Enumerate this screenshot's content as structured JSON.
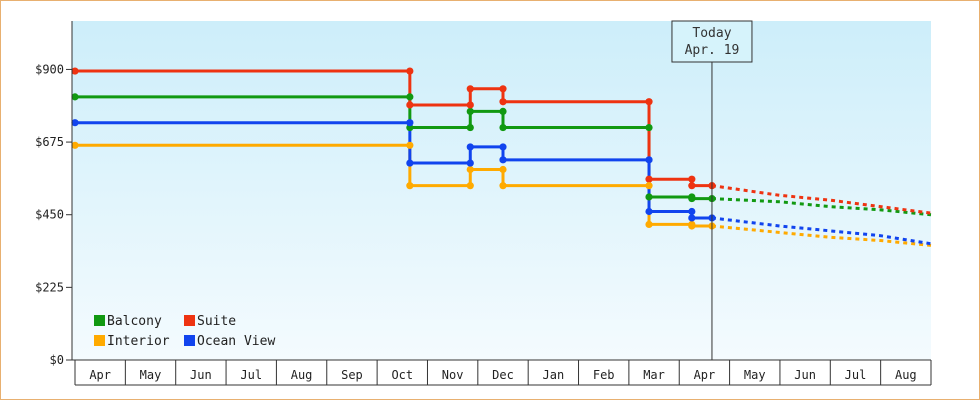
{
  "chart_data": {
    "type": "line",
    "y_ticks": [
      {
        "value": 0,
        "label": "$0"
      },
      {
        "value": 225,
        "label": "$225"
      },
      {
        "value": 450,
        "label": "$450"
      },
      {
        "value": 675,
        "label": "$675"
      },
      {
        "value": 900,
        "label": "$900"
      }
    ],
    "ylim": [
      0,
      1050
    ],
    "x_months": [
      "Apr",
      "May",
      "Jun",
      "Jul",
      "Aug",
      "Sep",
      "Oct",
      "Nov",
      "Dec",
      "Jan",
      "Feb",
      "Mar",
      "Apr",
      "May",
      "Jun",
      "Jul",
      "Aug"
    ],
    "x_range": [
      0,
      17
    ],
    "today": {
      "x": 12.65,
      "line1": "Today",
      "line2": "Apr. 19"
    },
    "grid": false,
    "legend_position": "bottom-left",
    "series": [
      {
        "name": "Balcony",
        "color": "#119911",
        "points": [
          [
            0,
            815
          ],
          [
            6.65,
            815
          ],
          [
            6.65,
            720
          ],
          [
            7.85,
            720
          ],
          [
            7.85,
            770
          ],
          [
            8.5,
            770
          ],
          [
            8.5,
            720
          ],
          [
            11.4,
            720
          ],
          [
            11.4,
            505
          ],
          [
            12.25,
            505
          ],
          [
            12.25,
            500
          ],
          [
            12.65,
            500
          ]
        ],
        "forecast": [
          [
            12.65,
            500
          ],
          [
            14,
            490
          ],
          [
            15,
            475
          ],
          [
            16,
            465
          ],
          [
            17,
            450
          ]
        ]
      },
      {
        "name": "Suite",
        "color": "#ee3311",
        "points": [
          [
            0,
            895
          ],
          [
            6.65,
            895
          ],
          [
            6.65,
            790
          ],
          [
            7.85,
            790
          ],
          [
            7.85,
            840
          ],
          [
            8.5,
            840
          ],
          [
            8.5,
            800
          ],
          [
            11.4,
            800
          ],
          [
            11.4,
            560
          ],
          [
            12.25,
            560
          ],
          [
            12.25,
            540
          ],
          [
            12.65,
            540
          ]
        ],
        "forecast": [
          [
            12.65,
            540
          ],
          [
            14,
            510
          ],
          [
            15,
            495
          ],
          [
            16,
            475
          ],
          [
            17,
            455
          ]
        ]
      },
      {
        "name": "Interior",
        "color": "#ffaa00",
        "points": [
          [
            0,
            665
          ],
          [
            6.65,
            665
          ],
          [
            6.65,
            540
          ],
          [
            7.85,
            540
          ],
          [
            7.85,
            590
          ],
          [
            8.5,
            590
          ],
          [
            8.5,
            540
          ],
          [
            11.4,
            540
          ],
          [
            11.4,
            420
          ],
          [
            12.25,
            420
          ],
          [
            12.25,
            415
          ],
          [
            12.65,
            415
          ]
        ],
        "forecast": [
          [
            12.65,
            415
          ],
          [
            14,
            395
          ],
          [
            15,
            380
          ],
          [
            16,
            370
          ],
          [
            17,
            355
          ]
        ]
      },
      {
        "name": "Ocean View",
        "color": "#1144ee",
        "points": [
          [
            0,
            735
          ],
          [
            6.65,
            735
          ],
          [
            6.65,
            610
          ],
          [
            7.85,
            610
          ],
          [
            7.85,
            660
          ],
          [
            8.5,
            660
          ],
          [
            8.5,
            620
          ],
          [
            11.4,
            620
          ],
          [
            11.4,
            460
          ],
          [
            12.25,
            460
          ],
          [
            12.25,
            440
          ],
          [
            12.65,
            440
          ]
        ],
        "forecast": [
          [
            12.65,
            440
          ],
          [
            14,
            415
          ],
          [
            15,
            400
          ],
          [
            16,
            385
          ],
          [
            17,
            360
          ]
        ]
      }
    ]
  }
}
